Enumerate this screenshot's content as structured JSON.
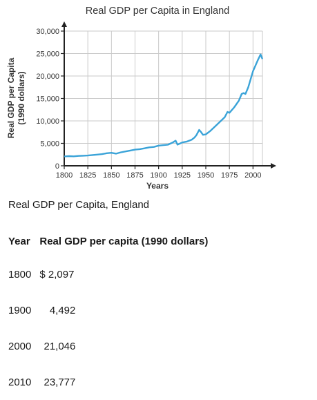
{
  "chart_data": {
    "type": "line",
    "title": "Real GDP per Capita in England",
    "xlabel": "Years",
    "ylabel": "Real GDP per Capita (1990 dollars)",
    "ylabel_lines": [
      "Real GDP per Capita",
      "(1990 dollars)"
    ],
    "xlim": [
      1800,
      2010
    ],
    "ylim": [
      0,
      30000
    ],
    "x_ticks": [
      "1800",
      "1825",
      "1850",
      "1875",
      "1900",
      "1925",
      "1950",
      "1975",
      "2000"
    ],
    "y_ticks": [
      "0",
      "5,000",
      "10,000",
      "15,000",
      "20,000",
      "25,000",
      "30,000"
    ],
    "x_tick_values": [
      1800,
      1825,
      1850,
      1875,
      1900,
      1925,
      1950,
      1975,
      2000
    ],
    "y_tick_values": [
      0,
      5000,
      10000,
      15000,
      20000,
      25000,
      30000
    ],
    "grid": true,
    "line_color": "#3aa3d8",
    "series": [
      {
        "x": [
          1800,
          1805,
          1810,
          1815,
          1820,
          1825,
          1830,
          1835,
          1840,
          1845,
          1850,
          1855,
          1860,
          1865,
          1870,
          1875,
          1880,
          1885,
          1890,
          1895,
          1900,
          1905,
          1910,
          1913,
          1915,
          1918,
          1920,
          1922,
          1925,
          1930,
          1935,
          1938,
          1940,
          1943,
          1945,
          1947,
          1950,
          1955,
          1960,
          1965,
          1970,
          1973,
          1975,
          1980,
          1985,
          1988,
          1990,
          1992,
          1995,
          2000,
          2005,
          2008,
          2010
        ],
        "y": [
          2097,
          2150,
          2100,
          2200,
          2250,
          2300,
          2400,
          2500,
          2600,
          2800,
          2900,
          2700,
          3000,
          3200,
          3400,
          3600,
          3700,
          3900,
          4100,
          4200,
          4492,
          4600,
          4700,
          5000,
          5200,
          5600,
          4700,
          4900,
          5200,
          5400,
          5800,
          6300,
          6800,
          8000,
          7500,
          6900,
          7000,
          7800,
          8800,
          9800,
          10800,
          12000,
          11800,
          13000,
          14500,
          16000,
          16200,
          16000,
          17500,
          21046,
          23500,
          24800,
          23777
        ]
      }
    ]
  },
  "caption": "Real GDP per Capita, England",
  "table": {
    "headers": [
      "Year",
      "Real GDP per capita (1990 dollars)"
    ],
    "rows": [
      {
        "year": "1800",
        "value": "$ 2,097"
      },
      {
        "year": "1900",
        "value": "4,492"
      },
      {
        "year": "2000",
        "value": "21,046"
      },
      {
        "year": "2010",
        "value": "23,777"
      }
    ]
  }
}
